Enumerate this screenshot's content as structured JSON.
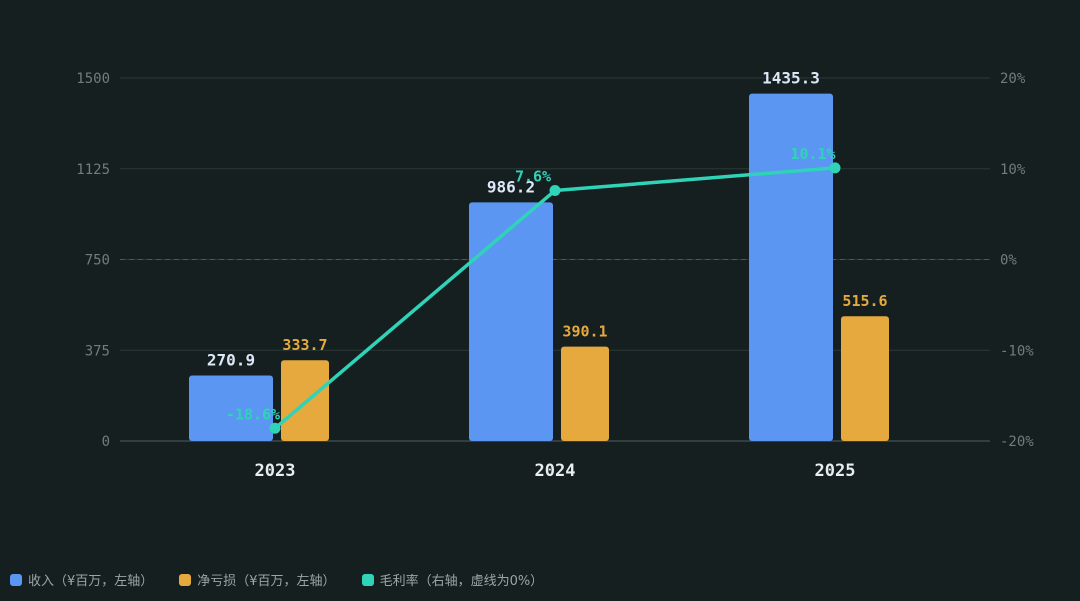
{
  "chart_data": {
    "type": "bar",
    "categories": [
      "2023",
      "2024",
      "2025"
    ],
    "series": [
      {
        "name": "收入（¥百万，左轴）",
        "kind": "bar",
        "axis": "left",
        "color": "#5b96f2",
        "values": [
          270.9,
          986.2,
          1435.3
        ],
        "labels": [
          "270.9",
          "986.2",
          "1435.3"
        ]
      },
      {
        "name": "净亏损（¥百万，左轴）",
        "kind": "bar",
        "axis": "left",
        "color": "#e5a93d",
        "values": [
          333.7,
          390.1,
          515.6
        ],
        "labels": [
          "333.7",
          "390.1",
          "515.6"
        ]
      },
      {
        "name": "毛利率（右轴，虚线为0%）",
        "kind": "line",
        "axis": "right",
        "color": "#2fd3b7",
        "values": [
          -18.6,
          7.6,
          10.1
        ],
        "labels": [
          "-18.6%",
          "7.6%",
          "10.1%"
        ]
      }
    ],
    "y_left": {
      "min": 0,
      "max": 1500,
      "ticks": [
        0,
        375,
        750,
        1125,
        1500
      ],
      "tick_labels": [
        "0",
        "375",
        "750",
        "1125",
        "1500"
      ]
    },
    "y_right": {
      "min": -20,
      "max": 20,
      "ticks": [
        -20,
        -10,
        0,
        10,
        20
      ],
      "tick_labels": [
        "-20%",
        "-10%",
        "0%",
        "10%",
        "20%"
      ]
    },
    "grid": true,
    "zero_line_dashed": true,
    "legend_position": "bottom-left",
    "colors": {
      "background": "#151f1f",
      "grid": "#2b3838",
      "tick_text": "#6f7d7d",
      "category_text": "#e8eeee",
      "revenue_label": "#dce8f8"
    }
  }
}
